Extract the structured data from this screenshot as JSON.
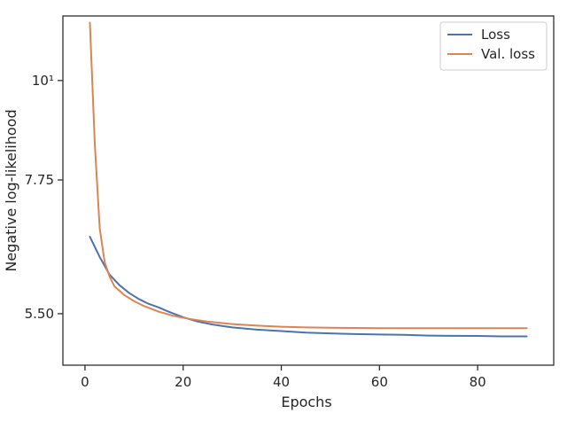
{
  "chart_data": {
    "type": "line",
    "title": "",
    "xlabel": "Epochs",
    "ylabel": "Negative log-likelihood",
    "xlim": [
      -4.5,
      95.5
    ],
    "ylim": [
      4.82,
      11.8
    ],
    "log_y": true,
    "grid": false,
    "legend_position": "top-right",
    "x_ticks": [
      0,
      20,
      40,
      60,
      80
    ],
    "x_tick_labels": [
      "0",
      "20",
      "40",
      "60",
      "80"
    ],
    "y_ticks": [
      10,
      7.75,
      5.5
    ],
    "y_tick_labels": [
      "10¹",
      "7.75",
      "5.50"
    ],
    "series": [
      {
        "name": "Loss",
        "color": "#4c72b0",
        "x": [
          1,
          3,
          5,
          7,
          9,
          11,
          13,
          15,
          17,
          20,
          23,
          26,
          30,
          35,
          40,
          45,
          50,
          55,
          60,
          65,
          70,
          75,
          80,
          85,
          90
        ],
        "y": [
          6.7,
          6.36,
          6.08,
          5.92,
          5.8,
          5.71,
          5.64,
          5.59,
          5.53,
          5.45,
          5.39,
          5.35,
          5.31,
          5.28,
          5.26,
          5.24,
          5.23,
          5.22,
          5.215,
          5.21,
          5.2,
          5.197,
          5.195,
          5.19,
          5.19
        ]
      },
      {
        "name": "Val. loss",
        "color": "#dd8452",
        "x": [
          1,
          2,
          3,
          4,
          5,
          6,
          8,
          10,
          12,
          15,
          18,
          21,
          25,
          30,
          35,
          40,
          45,
          50,
          55,
          60,
          65,
          70,
          75,
          80,
          85,
          90
        ],
        "y": [
          11.6,
          8.5,
          6.85,
          6.28,
          6.05,
          5.9,
          5.77,
          5.68,
          5.61,
          5.53,
          5.47,
          5.43,
          5.39,
          5.355,
          5.335,
          5.32,
          5.31,
          5.305,
          5.302,
          5.3,
          5.3,
          5.3,
          5.3,
          5.3,
          5.3,
          5.3
        ]
      }
    ]
  }
}
